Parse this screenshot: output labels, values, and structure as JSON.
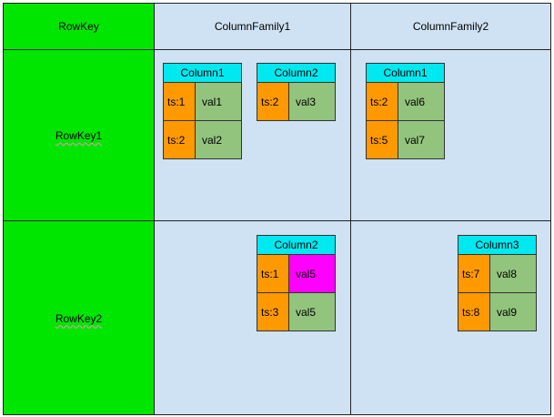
{
  "header": {
    "row_key": "RowKey",
    "families": [
      "ColumnFamily1",
      "ColumnFamily2"
    ]
  },
  "rows": [
    {
      "key": "RowKey1",
      "families": [
        {
          "columns": [
            {
              "name": "Column1",
              "cells": [
                {
                  "ts": "ts:1",
                  "value": "val1"
                },
                {
                  "ts": "ts:2",
                  "value": "val2"
                }
              ]
            },
            {
              "name": "Column2",
              "cells": [
                {
                  "ts": "ts:2",
                  "value": "val3"
                }
              ]
            }
          ]
        },
        {
          "columns": [
            {
              "name": "Column1",
              "cells": [
                {
                  "ts": "ts:2",
                  "value": "val6"
                },
                {
                  "ts": "ts:5",
                  "value": "val7"
                }
              ]
            }
          ]
        }
      ]
    },
    {
      "key": "RowKey2",
      "families": [
        {
          "columns": [
            {
              "name": "Column2",
              "cells": [
                {
                  "ts": "ts:1",
                  "value": "val5"
                },
                {
                  "ts": "ts:3",
                  "value": "val5"
                }
              ]
            }
          ]
        },
        {
          "columns": [
            {
              "name": "Column3",
              "cells": [
                {
                  "ts": "ts:7",
                  "value": "val8"
                },
                {
                  "ts": "ts:8",
                  "value": "val9"
                }
              ]
            }
          ]
        }
      ]
    }
  ]
}
